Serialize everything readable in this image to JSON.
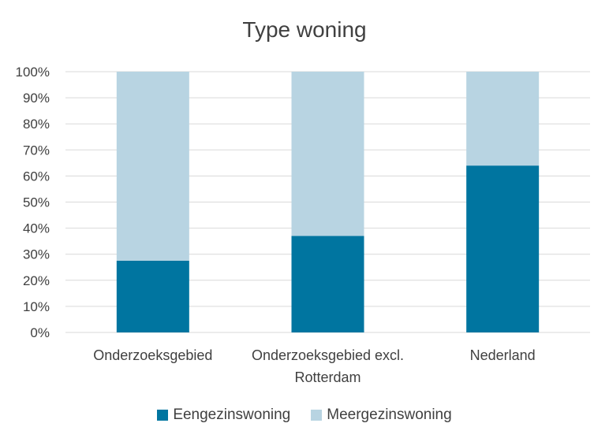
{
  "chart_data": {
    "type": "bar",
    "stacked": true,
    "title": "Type woning",
    "categories": [
      [
        "Onderzoeksgebied"
      ],
      [
        "Onderzoeksgebied excl.",
        "Rotterdam"
      ],
      [
        "Nederland"
      ]
    ],
    "series": [
      {
        "name": "Eengezinswoning",
        "color": "#0075A0",
        "values": [
          27.5,
          37,
          64
        ]
      },
      {
        "name": "Meergezinswoning",
        "color": "#B8D4E2",
        "values": [
          72.5,
          63,
          36
        ]
      }
    ],
    "ylim": [
      0,
      100
    ],
    "yticks": [
      "0%",
      "10%",
      "20%",
      "30%",
      "40%",
      "50%",
      "60%",
      "70%",
      "80%",
      "90%",
      "100%"
    ],
    "grid": true,
    "gridColor": "#d9d9d9",
    "legend_position": "bottom"
  }
}
